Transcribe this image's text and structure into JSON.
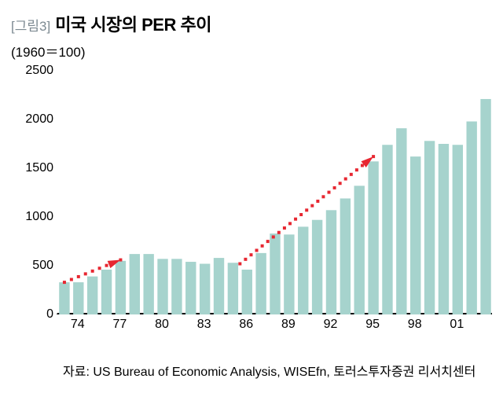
{
  "figure_label": "[그림3]",
  "title": "미국 시장의 PER 추이",
  "subtitle": "(1960＝100)",
  "source": "자료: US Bureau of Economic Analysis, WISEfn, 토러스투자증권 리서치센터",
  "chart": {
    "type": "bar",
    "background_color": "#ffffff",
    "bar_color": "#a6d3cd",
    "bar_gap_ratio": 0.25,
    "axis_color": "#000000",
    "tick_fontsize": 16,
    "ylim": [
      0,
      2500
    ],
    "ytick_step": 500,
    "yticks": [
      0,
      500,
      1000,
      1500,
      2000,
      2500
    ],
    "xticks_labels": [
      "74",
      "77",
      "80",
      "83",
      "86",
      "89",
      "92",
      "95",
      "98",
      "01"
    ],
    "xticks_positions": [
      1,
      4,
      7,
      10,
      13,
      16,
      19,
      22,
      25,
      28
    ],
    "values": [
      330,
      330,
      390,
      460,
      550,
      620,
      620,
      570,
      570,
      540,
      520,
      580,
      530,
      460,
      630,
      830,
      820,
      900,
      970,
      1070,
      1190,
      1320,
      1570,
      1740,
      1910,
      1620,
      1780,
      1750,
      1740,
      1980,
      2210
    ],
    "annotations": {
      "arrow_color": "#e72731",
      "arrow_width": 4,
      "dotted": true,
      "arrows": [
        {
          "from_idx": 0,
          "from_val": 330,
          "to_idx": 4,
          "to_val": 560,
          "head": "down-right"
        },
        {
          "from_idx": 12.5,
          "from_val": 520,
          "to_idx": 22,
          "to_val": 1620,
          "head": "up-right"
        }
      ]
    }
  }
}
